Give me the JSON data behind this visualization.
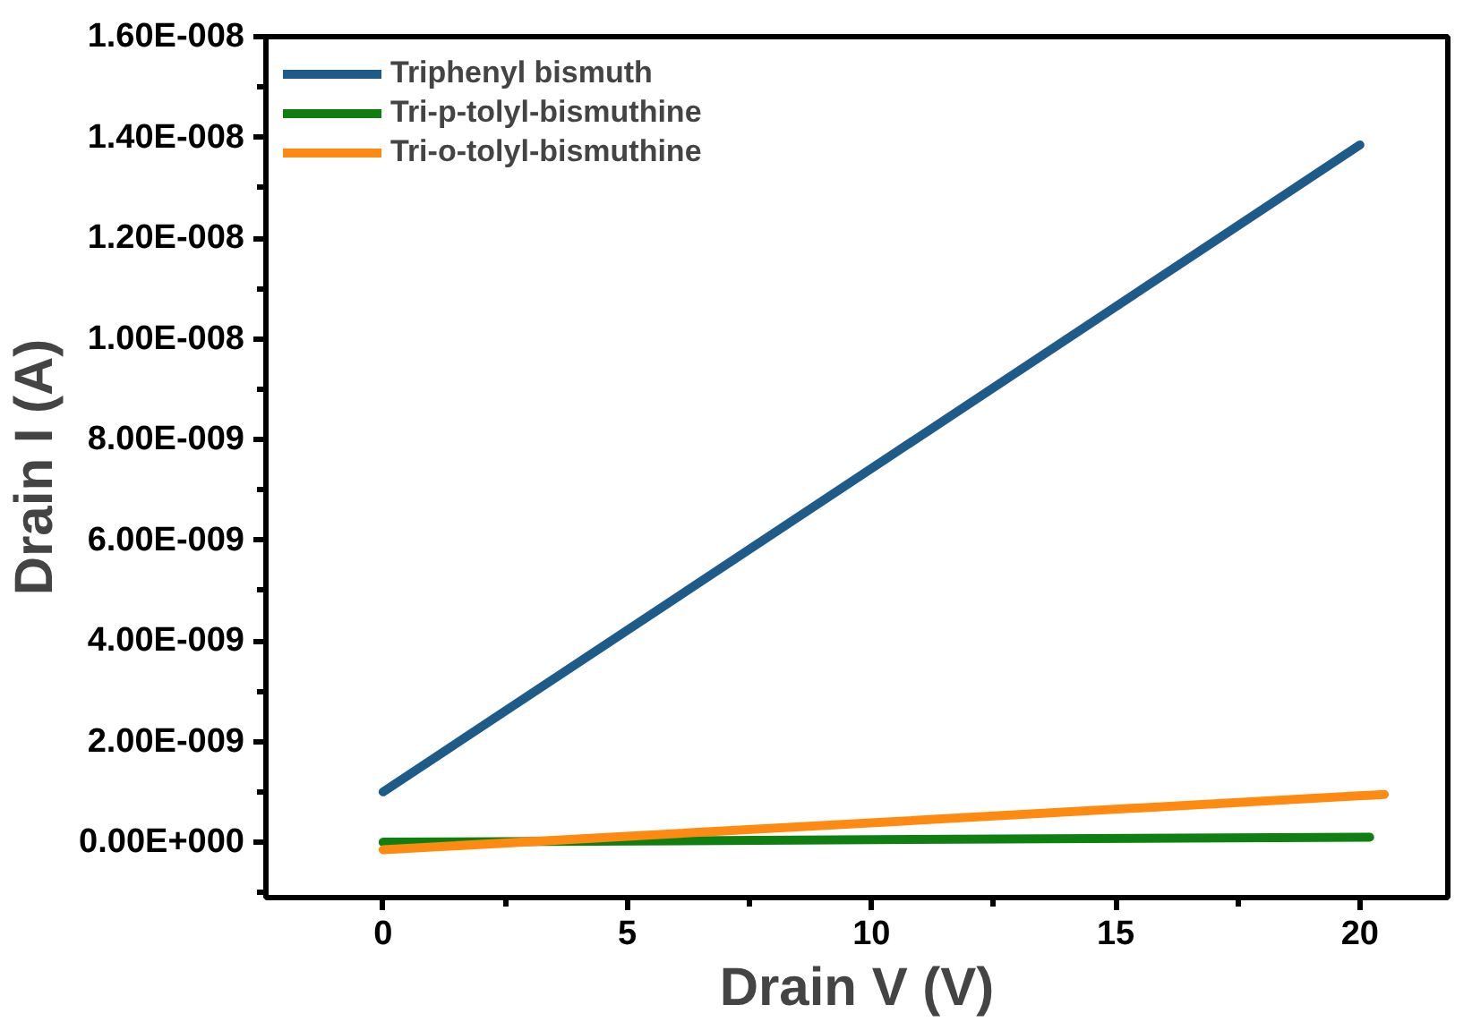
{
  "chart_data": {
    "type": "line",
    "xlabel": "Drain V (V)",
    "ylabel": "Drain I (A)",
    "xlim": [
      -2.4,
      21.8
    ],
    "xticks": [
      0,
      5,
      10,
      15,
      20
    ],
    "ylim": [
      -1.1e-09,
      1.6e-08
    ],
    "yticks": [
      {
        "value": 0,
        "label": "0.00E+000"
      },
      {
        "value": 2e-09,
        "label": "2.00E-009"
      },
      {
        "value": 4e-09,
        "label": "4.00E-009"
      },
      {
        "value": 6e-09,
        "label": "6.00E-009"
      },
      {
        "value": 8e-09,
        "label": "8.00E-009"
      },
      {
        "value": 1e-08,
        "label": "1.00E-008"
      },
      {
        "value": 1.2e-08,
        "label": "1.20E-008"
      },
      {
        "value": 1.4e-08,
        "label": "1.40E-008"
      },
      {
        "value": 1.6e-08,
        "label": "1.60E-008"
      }
    ],
    "grid": false,
    "legend": "top left",
    "line_style": "solid",
    "series": [
      {
        "name": "Triphenyl bismuth",
        "color": "#1f5b88",
        "x": [
          0,
          20
        ],
        "values": [
          1e-09,
          1.385e-08
        ]
      },
      {
        "name": "Tri-p-tolyl-bismuthine",
        "color": "#0f7f12",
        "x": [
          0,
          20.2
        ],
        "values": [
          0,
          1e-10
        ]
      },
      {
        "name": "Tri-o-tolyl-bismuthine",
        "color": "#ff8a12",
        "x": [
          0,
          20.5
        ],
        "values": [
          -1.5e-10,
          9.5e-10
        ]
      }
    ]
  }
}
